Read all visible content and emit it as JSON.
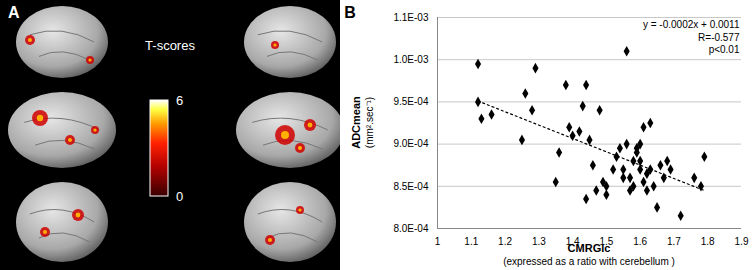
{
  "panel_a": {
    "label": "A",
    "colorbar": {
      "title": "T-scores",
      "range": [
        0,
        6
      ],
      "ticks": [
        0,
        6
      ]
    }
  },
  "chart_data": {
    "type": "scatter",
    "panel_label": "B",
    "xlabel": [
      "CMRGlc",
      "(expressed as a ratio with cerebellum )"
    ],
    "ylabel": [
      "ADCmean",
      "(mm².sec⁻¹)"
    ],
    "annotations": [
      "y = -0.0002x + 0.0011",
      "R=-0.577",
      "p<0.01"
    ],
    "marker": "diamond",
    "color": "#000000",
    "grid": true,
    "xlim": [
      1,
      1.9
    ],
    "xticks": [
      1,
      1.1,
      1.2,
      1.3,
      1.4,
      1.5,
      1.6,
      1.7,
      1.8,
      1.9
    ],
    "ylim": [
      0.0008,
      0.00105
    ],
    "yticks": [
      {
        "value": 0.0008,
        "label": "8.0E-04"
      },
      {
        "value": 0.00085,
        "label": "8.5E-04"
      },
      {
        "value": 0.0009,
        "label": "9.0E-04"
      },
      {
        "value": 0.00095,
        "label": "9.5E-04"
      },
      {
        "value": 0.001,
        "label": "1.0E-03"
      },
      {
        "value": 0.00105,
        "label": "1.1E-03"
      }
    ],
    "trend_line": {
      "x": [
        1.12,
        1.79
      ],
      "y": [
        0.000951,
        0.000845
      ],
      "line_style": "dotted"
    },
    "x": [
      1.12,
      1.12,
      1.13,
      1.16,
      1.25,
      1.26,
      1.28,
      1.29,
      1.35,
      1.36,
      1.38,
      1.39,
      1.4,
      1.42,
      1.43,
      1.44,
      1.44,
      1.45,
      1.46,
      1.47,
      1.48,
      1.49,
      1.5,
      1.5,
      1.52,
      1.53,
      1.54,
      1.55,
      1.55,
      1.56,
      1.56,
      1.57,
      1.57,
      1.58,
      1.58,
      1.59,
      1.59,
      1.6,
      1.6,
      1.6,
      1.61,
      1.61,
      1.62,
      1.62,
      1.63,
      1.63,
      1.64,
      1.65,
      1.66,
      1.67,
      1.68,
      1.69,
      1.72,
      1.76,
      1.78,
      1.79
    ],
    "values": [
      0.000995,
      0.00095,
      0.00093,
      0.000935,
      0.000905,
      0.00096,
      0.00094,
      0.00099,
      0.000855,
      0.00089,
      0.00097,
      0.00092,
      0.00091,
      0.000915,
      0.000945,
      0.00097,
      0.000835,
      0.000905,
      0.000875,
      0.000845,
      0.00094,
      0.000855,
      0.00084,
      0.00085,
      0.00087,
      0.000885,
      0.000895,
      0.00086,
      0.00087,
      0.00101,
      0.0009,
      0.000845,
      0.00086,
      0.00088,
      0.00085,
      0.00089,
      0.000895,
      0.00087,
      0.00088,
      0.0009,
      0.000855,
      0.00092,
      0.000845,
      0.000865,
      0.000925,
      0.00087,
      0.00085,
      0.000825,
      0.000875,
      0.00086,
      0.00088,
      0.00087,
      0.000815,
      0.00086,
      0.00085,
      0.000885
    ]
  }
}
